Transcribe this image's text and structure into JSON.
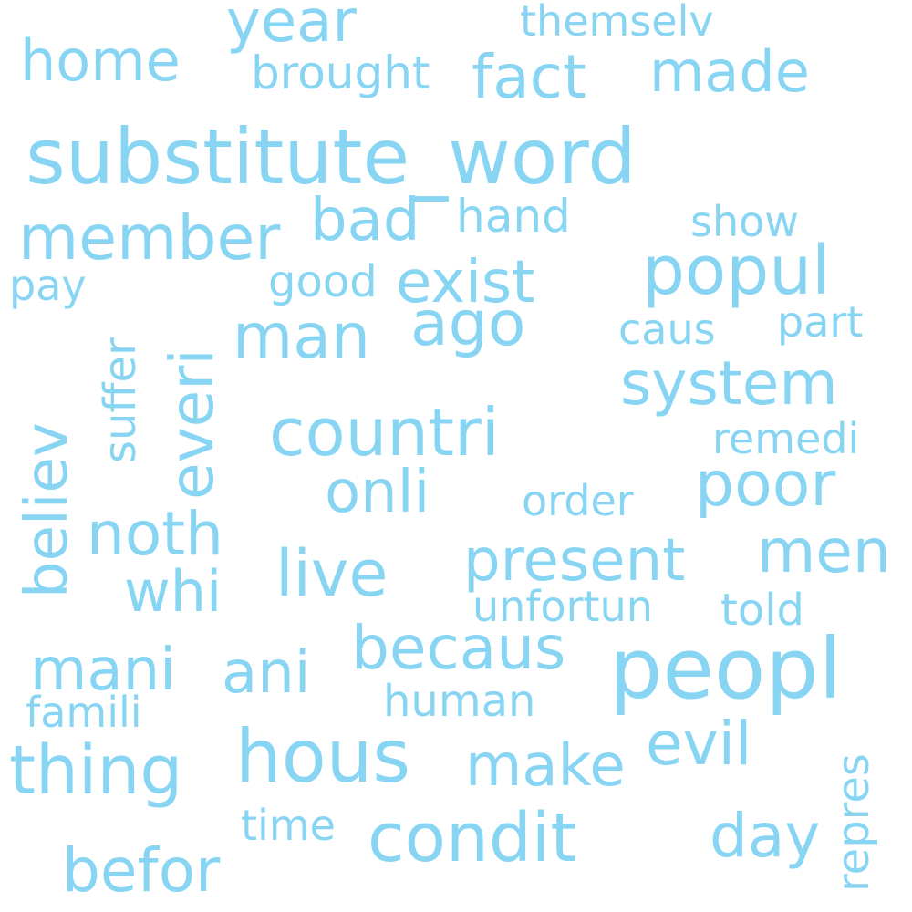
{
  "cloud": {
    "color": "#87d5f3",
    "words": [
      "substitute_word",
      "peopl",
      "countri",
      "hous",
      "condit",
      "thing",
      "present",
      "popul",
      "system",
      "member",
      "exist",
      "man",
      "ago",
      "live",
      "becaus",
      "poor",
      "men",
      "noth",
      "onli",
      "mani",
      "evil",
      "make",
      "day",
      "befor",
      "ani",
      "bad",
      "fact",
      "made",
      "home",
      "year",
      "whi",
      "everi",
      "believ",
      "brought",
      "show",
      "hand",
      "good",
      "caus",
      "part",
      "remedi",
      "order",
      "unfortun",
      "told",
      "human",
      "famili",
      "time",
      "repres",
      "suffer",
      "pay",
      "themselv"
    ]
  }
}
